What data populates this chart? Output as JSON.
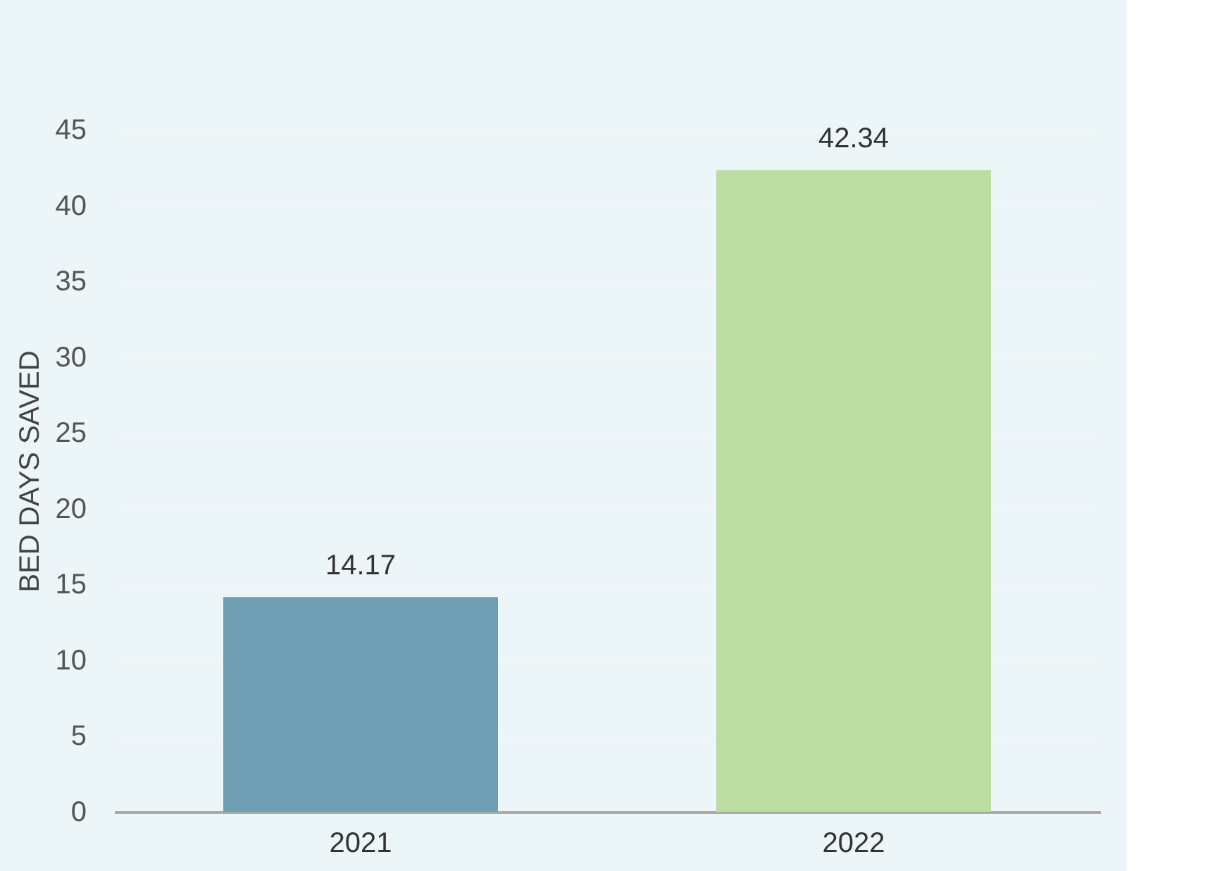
{
  "chart_data": {
    "type": "bar",
    "ylabel": "BED DAYS SAVED",
    "categories": [
      "2021",
      "2022"
    ],
    "values": [
      14.17,
      42.34
    ],
    "colors": [
      "#709fb5",
      "#bcdca2"
    ],
    "ylim": [
      0,
      45
    ],
    "yticks": [
      0,
      5,
      10,
      15,
      20,
      25,
      30,
      35,
      40,
      45
    ],
    "grid": "y",
    "data_labels": true
  }
}
